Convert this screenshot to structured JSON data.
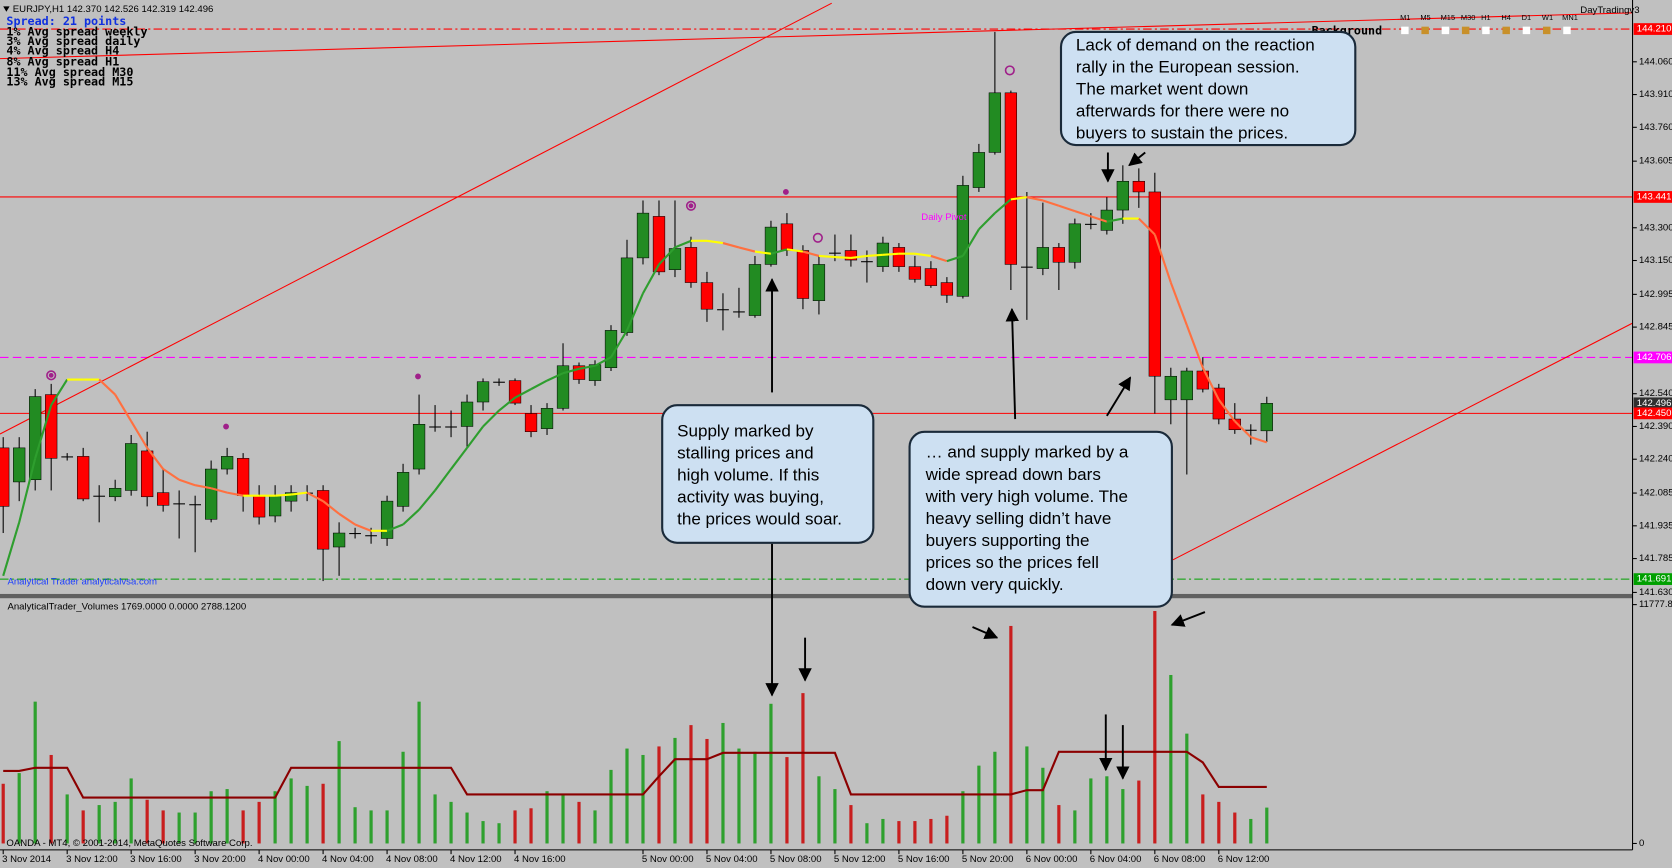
{
  "chart_data": [
    {
      "type": "candlestick",
      "title": "EURJPY,H1  142.370 142.526 142.319 142.496",
      "info": [
        "Spread: 21 points",
        "1% Avg spread weekly",
        "3% Avg spread daily",
        "4% Avg spread H4",
        "8% Avg spread H1",
        "11% Avg spread M30",
        "13% Avg spread M15"
      ],
      "watermark": "Analytical Trader analyticalvsa.com",
      "pivot_label": "Daily Pivot",
      "categories": [
        "3 Nov 2014",
        null,
        null,
        null,
        "3 Nov 12:00",
        null,
        null,
        null,
        "3 Nov 16:00",
        null,
        null,
        null,
        "3 Nov 20:00",
        null,
        null,
        null,
        "4 Nov 00:00",
        null,
        null,
        null,
        "4 Nov 04:00",
        null,
        null,
        null,
        "4 Nov 08:00",
        null,
        null,
        null,
        "4 Nov 12:00",
        null,
        null,
        null,
        "4 Nov 16:00",
        null,
        null,
        null,
        null,
        null,
        null,
        null,
        "5 Nov 00:00",
        null,
        null,
        null,
        "5 Nov 04:00",
        null,
        null,
        null,
        "5 Nov 08:00",
        null,
        null,
        null,
        "5 Nov 12:00",
        null,
        null,
        null,
        "5 Nov 16:00",
        null,
        null,
        null,
        "5 Nov 20:00",
        null,
        null,
        null,
        "6 Nov 00:00",
        null,
        null,
        null,
        "6 Nov 04:00",
        null,
        null,
        null,
        "6 Nov 08:00",
        null,
        null,
        null,
        "6 Nov 12:00",
        null,
        null,
        null
      ],
      "open": [
        142.292,
        142.136,
        142.146,
        142.536,
        142.253,
        142.253,
        142.073,
        142.068,
        142.097,
        142.278,
        142.087,
        142.038,
        142.034,
        141.965,
        142.195,
        142.244,
        142.073,
        141.98,
        142.048,
        142.087,
        142.097,
        141.838,
        141.902,
        141.892,
        141.877,
        142.024,
        142.195,
        142.39,
        142.39,
        142.39,
        142.502,
        142.595,
        142.6,
        142.449,
        142.38,
        142.473,
        142.668,
        142.6,
        142.659,
        142.82,
        143.162,
        143.352,
        143.108,
        143.21,
        143.049,
        142.927,
        142.917,
        142.898,
        143.132,
        143.318,
        143.196,
        142.966,
        143.186,
        143.196,
        143.147,
        143.122,
        143.21,
        143.122,
        143.113,
        143.049,
        142.986,
        143.484,
        143.645,
        143.918,
        143.122,
        143.113,
        143.21,
        143.142,
        143.318,
        143.288,
        143.381,
        143.513,
        143.464,
        142.512,
        142.512,
        142.644,
        142.566,
        142.424,
        142.375,
        142.37
      ],
      "high": [
        142.341,
        142.341,
        142.561,
        142.585,
        142.268,
        142.292,
        142.121,
        142.146,
        142.351,
        142.366,
        142.195,
        142.097,
        142.073,
        142.234,
        142.292,
        142.268,
        142.121,
        142.121,
        142.121,
        142.121,
        142.121,
        141.951,
        141.926,
        141.926,
        142.073,
        142.219,
        142.536,
        142.488,
        142.463,
        142.536,
        142.61,
        142.61,
        142.61,
        142.488,
        142.497,
        142.771,
        142.683,
        142.693,
        142.854,
        143.245,
        143.425,
        143.425,
        143.425,
        143.259,
        143.098,
        143.0,
        143.025,
        143.171,
        143.332,
        143.367,
        143.22,
        143.171,
        143.269,
        143.269,
        143.196,
        143.259,
        143.23,
        143.171,
        143.147,
        143.074,
        143.538,
        143.684,
        144.197,
        143.928,
        143.464,
        143.415,
        143.23,
        143.342,
        143.367,
        143.44,
        143.586,
        143.572,
        143.552,
        142.659,
        142.659,
        142.707,
        142.585,
        142.497,
        142.4,
        142.526
      ],
      "low": [
        141.902,
        142.048,
        142.097,
        142.097,
        142.234,
        142.048,
        141.951,
        142.048,
        142.073,
        142.024,
        142.0,
        141.877,
        141.814,
        141.951,
        142.17,
        142.0,
        141.941,
        141.951,
        142.0,
        142.048,
        141.682,
        141.706,
        141.877,
        141.853,
        141.843,
        142.0,
        142.17,
        142.366,
        142.341,
        142.292,
        142.463,
        142.576,
        142.488,
        142.341,
        142.351,
        142.463,
        142.585,
        142.576,
        142.644,
        142.805,
        143.132,
        143.083,
        143.074,
        143.025,
        142.869,
        142.83,
        142.888,
        142.888,
        143.122,
        143.171,
        142.927,
        142.903,
        143.147,
        143.122,
        143.049,
        143.098,
        143.098,
        143.049,
        143.025,
        142.956,
        142.976,
        143.464,
        143.635,
        143.015,
        142.878,
        143.083,
        143.015,
        143.113,
        143.293,
        143.269,
        143.318,
        143.391,
        142.449,
        142.4,
        142.17,
        142.546,
        142.4,
        142.356,
        142.307,
        142.319
      ],
      "close": [
        142.024,
        142.292,
        142.527,
        142.244,
        142.253,
        142.058,
        142.073,
        142.107,
        142.312,
        142.068,
        142.029,
        142.038,
        142.034,
        142.195,
        142.253,
        142.073,
        141.975,
        142.073,
        142.087,
        142.087,
        141.828,
        141.902,
        141.902,
        141.892,
        142.048,
        142.18,
        142.4,
        142.39,
        142.39,
        142.502,
        142.595,
        142.595,
        142.497,
        142.366,
        142.473,
        142.668,
        142.605,
        142.673,
        142.83,
        143.162,
        143.367,
        143.098,
        143.205,
        143.049,
        142.927,
        142.927,
        142.917,
        143.132,
        143.303,
        143.196,
        142.976,
        143.132,
        143.186,
        143.152,
        143.147,
        143.23,
        143.122,
        143.064,
        143.035,
        142.991,
        143.494,
        143.645,
        143.918,
        143.132,
        143.122,
        143.21,
        143.142,
        143.318,
        143.318,
        143.381,
        143.513,
        143.464,
        142.62,
        142.62,
        142.644,
        142.561,
        142.424,
        142.375,
        142.375,
        142.496
      ],
      "up_color": "#228b22",
      "down_color": "#ff0000",
      "wick_color": "#000000",
      "ma": {
        "values": [
          141.706,
          141.951,
          142.244,
          142.488,
          142.605,
          142.605,
          142.605,
          142.536,
          142.414,
          142.292,
          142.195,
          142.146,
          142.121,
          142.107,
          142.087,
          142.073,
          142.073,
          142.073,
          142.078,
          142.087,
          142.048,
          141.99,
          141.941,
          141.912,
          141.912,
          141.941,
          142.009,
          142.097,
          142.195,
          142.292,
          142.39,
          142.463,
          142.522,
          142.561,
          142.6,
          142.634,
          142.654,
          142.668,
          142.707,
          142.83,
          143.0,
          143.132,
          143.21,
          143.24,
          143.24,
          143.23,
          143.21,
          143.191,
          143.181,
          143.201,
          143.191,
          143.171,
          143.166,
          143.162,
          143.171,
          143.176,
          143.181,
          143.181,
          143.171,
          143.147,
          143.171,
          143.293,
          143.367,
          143.43,
          143.44,
          143.425,
          143.401,
          143.376,
          143.352,
          143.328,
          143.342,
          143.342,
          143.269,
          143.049,
          142.854,
          142.659,
          142.512,
          142.414,
          142.341,
          142.317
        ],
        "up_color": "#2e9e2e",
        "down_color": "#ff7040",
        "flat_color": "#ffff00"
      },
      "ylim": [
        141.623,
        144.343
      ],
      "yticks": [
        {
          "value": 144.06,
          "label": "144.060"
        },
        {
          "value": 143.91,
          "label": "143.910"
        },
        {
          "value": 143.76,
          "label": "143.760"
        },
        143.605,
        {
          "value": 143.3,
          "label": "143.300"
        },
        {
          "value": 143.15,
          "label": "143.150"
        },
        142.995,
        142.845,
        {
          "value": 142.54,
          "label": "142.540"
        },
        {
          "value": 142.39,
          "label": "142.390"
        },
        {
          "value": 142.24,
          "label": "142.240"
        },
        142.085,
        141.935,
        141.785,
        {
          "value": 141.63,
          "label": "141.630"
        }
      ],
      "price_levels": [
        {
          "value": 144.21,
          "label": "144.210",
          "color": "#ff0000",
          "style": "dashdot"
        },
        {
          "value": 143.441,
          "label": "143.441",
          "color": "#ff0000",
          "style": "solid"
        },
        {
          "value": 142.706,
          "label": "142.706",
          "color": "#ff00ff",
          "style": "dashed"
        },
        {
          "value": 142.496,
          "label": "142.496",
          "color": "#303030",
          "style": "none"
        },
        {
          "value": 142.45,
          "label": "142.450",
          "color": "#ff0000",
          "style": "solid"
        },
        {
          "value": 141.691,
          "label": "141.691",
          "color": "#00a000",
          "style": "dashdot"
        }
      ]
    },
    {
      "type": "bar",
      "title": "AnalyticalTrader_Volumes 1769.0000 0.0000 2788.1200",
      "values": [
        2944,
        3470,
        6993,
        4364,
        2419,
        1630,
        1893,
        2051,
        3207,
        2156,
        1630,
        1525,
        1525,
        2576,
        2682,
        1630,
        2051,
        2576,
        3207,
        2839,
        2944,
        5048,
        1788,
        1630,
        1630,
        4522,
        6993,
        2419,
        2051,
        1525,
        1104,
        999,
        1630,
        1735,
        2576,
        2419,
        2051,
        1630,
        3628,
        4680,
        4364,
        4785,
        5205,
        5836,
        5153,
        5942,
        4680,
        4522,
        6888,
        4259,
        7414,
        3313,
        2682,
        1893,
        999,
        1209,
        1104,
        1104,
        1209,
        1367,
        2576,
        3838,
        4522,
        10726,
        4785,
        3733,
        1893,
        1630,
        3207,
        3313,
        2682,
        3102,
        11462,
        8308,
        5416,
        2419,
        2051,
        1525,
        1209,
        1769
      ],
      "ma_values": [
        3575,
        3575,
        3733,
        3733,
        3733,
        2261,
        2261,
        2261,
        2261,
        2261,
        2261,
        2261,
        2261,
        2261,
        2261,
        2261,
        2261,
        2261,
        3733,
        3733,
        3733,
        3733,
        3733,
        3733,
        3733,
        3733,
        3733,
        3733,
        3733,
        2419,
        2419,
        2419,
        2419,
        2419,
        2419,
        2419,
        2419,
        2419,
        2419,
        2419,
        2419,
        3313,
        4154,
        4154,
        4154,
        4469,
        4469,
        4469,
        4469,
        4469,
        4469,
        4469,
        4469,
        2419,
        2419,
        2419,
        2419,
        2419,
        2419,
        2419,
        2419,
        2419,
        2419,
        2419,
        2629,
        2629,
        4522,
        4522,
        4522,
        4522,
        4522,
        4522,
        4522,
        4522,
        4522,
        3996,
        2788,
        2788,
        2788,
        2788
      ],
      "up_color": "#2ea02e",
      "down_color": "#c81e1e",
      "ma_color": "#8b0000",
      "ylim": [
        0,
        11777.85
      ],
      "yticks": [
        0,
        11777.85
      ]
    }
  ],
  "indicator": {
    "name": "DayTradingv3",
    "background_label": "Background",
    "timeframes": [
      "M1",
      "M5",
      "M15",
      "M30",
      "H1",
      "H4",
      "D1",
      "W1",
      "MN1"
    ]
  },
  "callouts": [
    {
      "lines": [
        "Lack of demand on the reaction",
        "rally in the European session.",
        "The market went down",
        "afterwards for there were no",
        "buyers to sustain the prices."
      ]
    },
    {
      "lines": [
        "Supply marked by",
        "stalling prices and",
        "high volume. If this",
        "activity was buying,",
        "the prices would soar."
      ]
    },
    {
      "lines": [
        "… and supply marked by a",
        "wide spread down bars",
        "with very high volume. The",
        "heavy selling didn’t have",
        "buyers supporting the",
        "prices so the prices fell",
        "down very quickly."
      ]
    }
  ],
  "footer": "OANDA - MT4, © 2001-2014, MetaQuotes Software Corp."
}
